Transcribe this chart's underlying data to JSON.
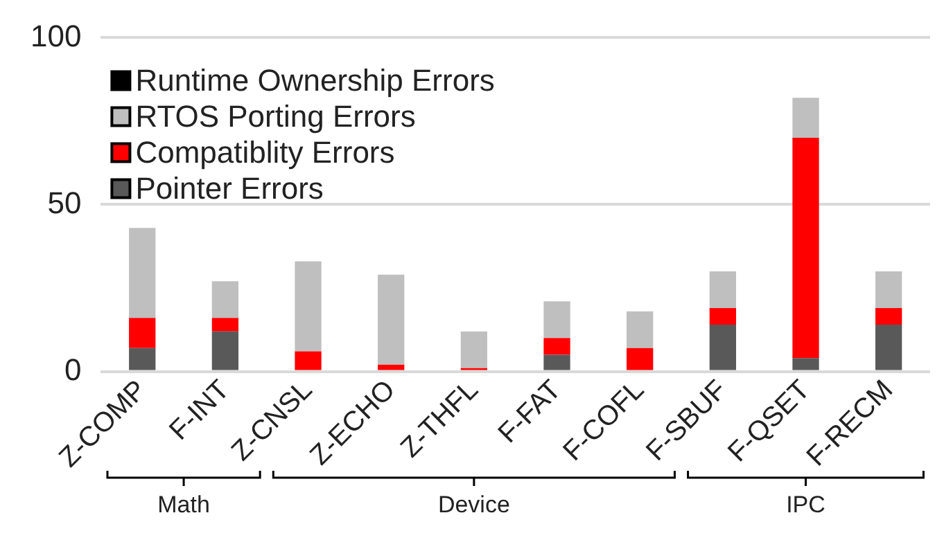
{
  "chart_data": {
    "type": "bar",
    "stacked": true,
    "categories": [
      "Z-COMP",
      "F-INT",
      "Z-CNSL",
      "Z-ECHO",
      "Z-THFL",
      "F-FAT",
      "F-COFL",
      "F-SBUF",
      "F-QSET",
      "F-RECM"
    ],
    "series": [
      {
        "name": "Pointer Errors",
        "color": "#595959",
        "values": [
          7,
          12,
          0,
          0,
          0,
          5,
          0,
          14,
          4,
          14
        ]
      },
      {
        "name": "Compatiblity Errors",
        "color": "#ff0000",
        "values": [
          9,
          4,
          6,
          2,
          1,
          5,
          7,
          5,
          66,
          5
        ]
      },
      {
        "name": "RTOS Porting Errors",
        "color": "#bfbfbf",
        "values": [
          27,
          11,
          27,
          27,
          11,
          11,
          11,
          11,
          12,
          11
        ]
      },
      {
        "name": "Runtime Ownership Errors",
        "color": "#000000",
        "values": [
          0,
          0,
          0,
          0,
          0,
          0,
          0,
          0,
          0,
          0
        ]
      }
    ],
    "ylim": [
      0,
      100
    ],
    "yticks": [
      0,
      50,
      100
    ],
    "grid": "y",
    "legend": "top left",
    "annotations": [
      "Math",
      "Device",
      "IPC"
    ]
  }
}
